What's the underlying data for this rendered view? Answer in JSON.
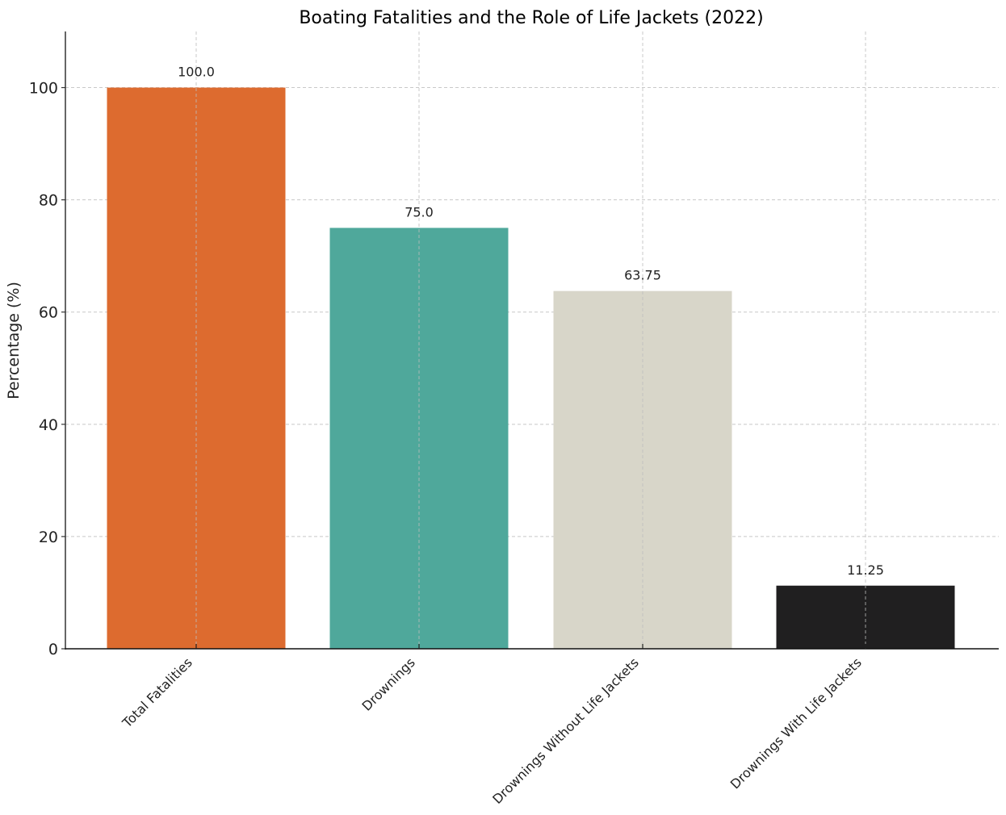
{
  "chart_data": {
    "type": "bar",
    "title": "Boating Fatalities and the Role of Life Jackets (2022)",
    "xlabel": "",
    "ylabel": "Percentage (%)",
    "categories": [
      "Total Fatalities",
      "Drownings",
      "Drownings Without Life Jackets",
      "Drownings With Life Jackets"
    ],
    "values": [
      100.0,
      75.0,
      63.75,
      11.25
    ],
    "value_labels": [
      "100.0",
      "75.0",
      "63.75",
      "11.25"
    ],
    "colors": [
      "#dd6b2f",
      "#4fa89b",
      "#d8d6c9",
      "#201f20"
    ],
    "ylim": [
      0,
      110
    ],
    "yticks": [
      0,
      20,
      40,
      60,
      80,
      100
    ],
    "grid": true,
    "legend": null
  }
}
